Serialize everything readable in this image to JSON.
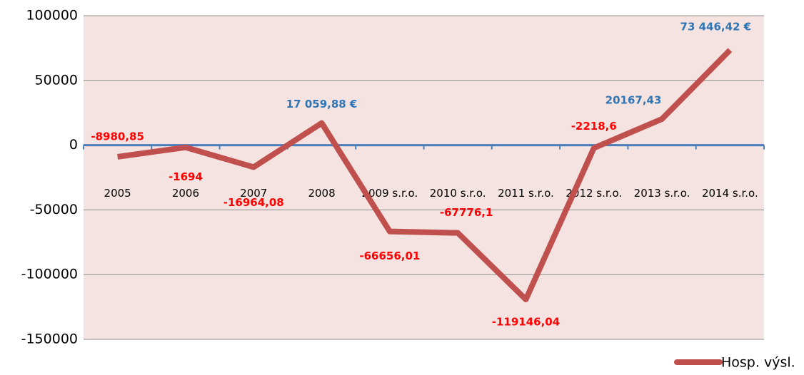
{
  "chart_data": {
    "type": "line",
    "categories": [
      "2005",
      "2006",
      "2007",
      "2008",
      "2009 s.r.o.",
      "2010 s.r.o.",
      "2011 s.r.o.",
      "2012 s.r.o.",
      "2013 s.r.o.",
      "2014 s.r.o."
    ],
    "series": [
      {
        "name": "Hosp. výsl.",
        "color": "#c0504d",
        "values": [
          -8980.85,
          -1694,
          -16964.08,
          17059.88,
          -66656.01,
          -67776.1,
          -119146.04,
          -2218.6,
          20167.43,
          73446.42
        ],
        "value_labels": [
          "-8980,85",
          "-1694",
          "-16964,08",
          "17 059,88 €",
          "-66656,01",
          "-67776,1",
          "-119146,04",
          "-2218,6",
          "20167,43",
          "73 446,42 €"
        ]
      }
    ],
    "positive_label_color": "#2e75b6",
    "negative_label_color": "#ff0000",
    "ylim": [
      -150000,
      100000
    ],
    "yticks": [
      -150000,
      -100000,
      -50000,
      0,
      50000,
      100000
    ],
    "grid": true,
    "legend": "bottom-right"
  }
}
